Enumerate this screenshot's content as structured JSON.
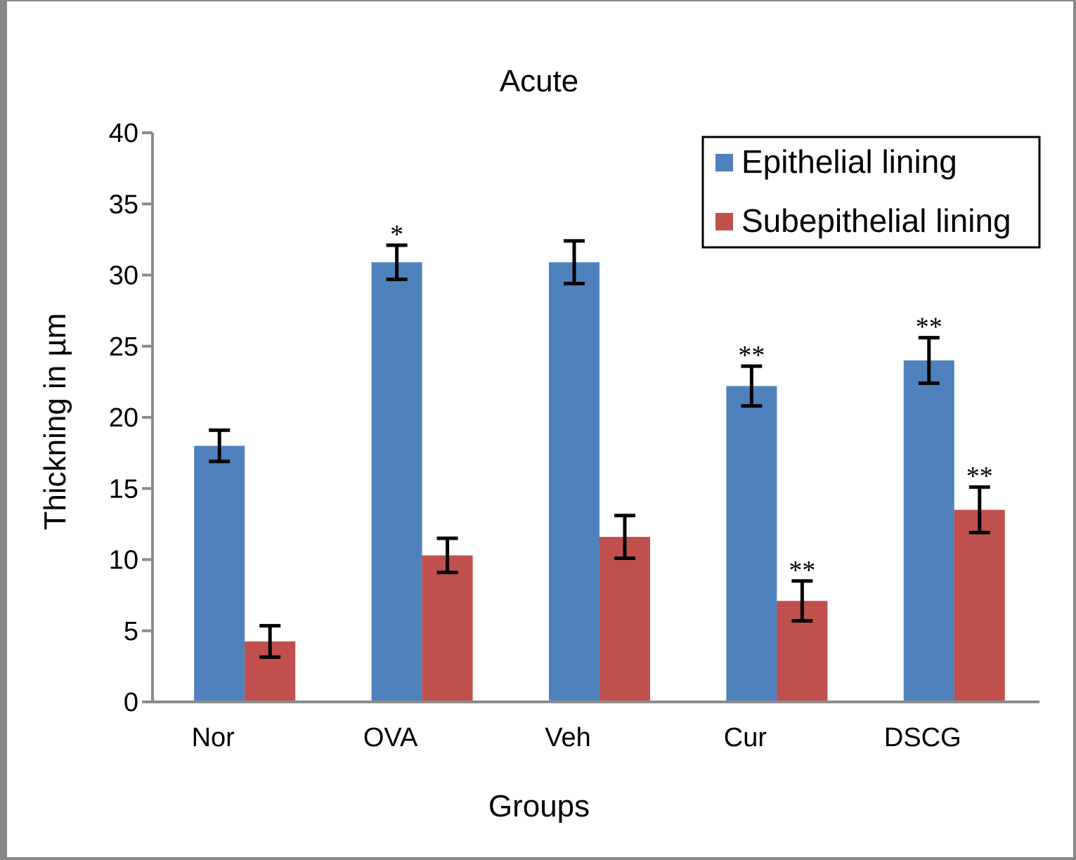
{
  "chart_data": {
    "type": "bar",
    "title": "Acute",
    "xlabel": "Groups",
    "ylabel": "Thickning in µm",
    "ylim": [
      0,
      40
    ],
    "yticks": [
      "0",
      "5",
      "10",
      "15",
      "20",
      "25",
      "30",
      "35",
      "40"
    ],
    "ytick_values": [
      0,
      5,
      10,
      15,
      20,
      25,
      30,
      35,
      40
    ],
    "grid": false,
    "legend_position": "top-right",
    "categories": [
      "Nor",
      "OVA",
      "Veh",
      "Cur",
      "DSCG"
    ],
    "series": [
      {
        "name": "Epithelial lining",
        "color": "#4F81BD",
        "values": [
          18.0,
          30.9,
          30.9,
          22.2,
          24.0
        ],
        "errors": [
          1.1,
          1.2,
          1.5,
          1.4,
          1.6
        ],
        "annotations": [
          "",
          "*",
          "",
          "**",
          "**"
        ]
      },
      {
        "name": "Subepithelial lining",
        "color": "#C0504D",
        "values": [
          4.25,
          10.3,
          11.6,
          7.1,
          13.5
        ],
        "errors": [
          1.1,
          1.2,
          1.5,
          1.4,
          1.6
        ],
        "annotations": [
          "",
          "",
          "",
          "**",
          "**"
        ]
      }
    ]
  }
}
